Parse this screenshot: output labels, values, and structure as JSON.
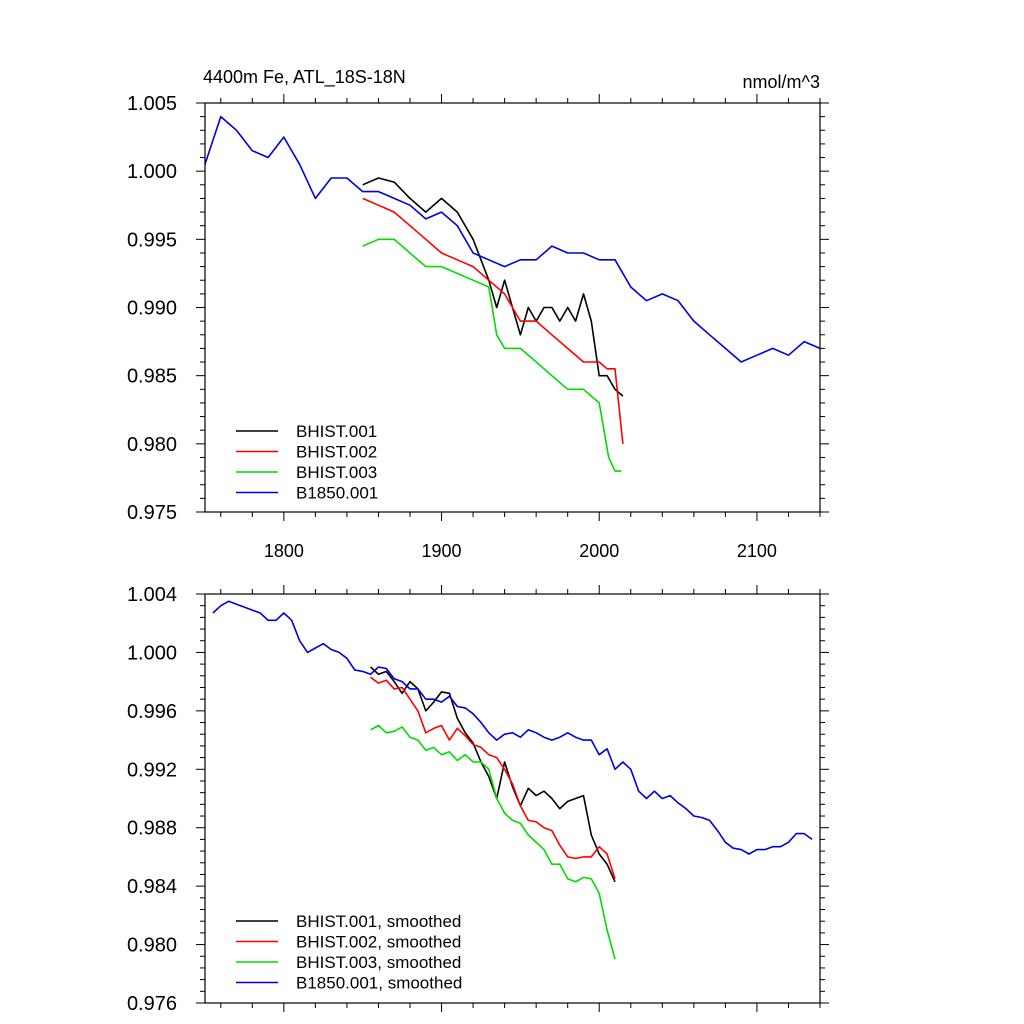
{
  "figure": {
    "title": "4400m Fe, ATL_18S-18N",
    "units": "nmol/m^3"
  },
  "chart_data": [
    {
      "type": "line",
      "xlim": [
        1750,
        2140
      ],
      "ylim": [
        0.975,
        1.005
      ],
      "x_ticks": [
        1800,
        1900,
        2000,
        2100
      ],
      "y_ticks": [
        0.975,
        0.98,
        0.985,
        0.99,
        0.995,
        1.0,
        1.005
      ],
      "y_tick_labels": [
        "0.975",
        "0.980",
        "0.985",
        "0.990",
        "0.995",
        "1.000",
        "1.005"
      ],
      "grid": false,
      "legend_position": "bottom-left",
      "series": [
        {
          "name": "BHIST.001",
          "color": "#000000",
          "x": [
            1850,
            1860,
            1870,
            1880,
            1890,
            1900,
            1910,
            1920,
            1930,
            1935,
            1940,
            1945,
            1950,
            1955,
            1960,
            1965,
            1970,
            1975,
            1980,
            1985,
            1990,
            1995,
            2000,
            2005,
            2010,
            2015
          ],
          "y": [
            0.999,
            0.9995,
            0.9992,
            0.998,
            0.997,
            0.998,
            0.997,
            0.995,
            0.992,
            0.99,
            0.992,
            0.99,
            0.988,
            0.99,
            0.989,
            0.99,
            0.99,
            0.989,
            0.99,
            0.989,
            0.991,
            0.989,
            0.985,
            0.985,
            0.984,
            0.9835
          ]
        },
        {
          "name": "BHIST.002",
          "color": "#ff0000",
          "x": [
            1850,
            1860,
            1870,
            1880,
            1890,
            1900,
            1910,
            1920,
            1930,
            1940,
            1950,
            1960,
            1970,
            1980,
            1990,
            2000,
            2005,
            2010,
            2015
          ],
          "y": [
            0.998,
            0.9975,
            0.997,
            0.996,
            0.995,
            0.994,
            0.9935,
            0.993,
            0.992,
            0.991,
            0.989,
            0.989,
            0.988,
            0.987,
            0.986,
            0.986,
            0.9855,
            0.9855,
            0.98
          ]
        },
        {
          "name": "BHIST.003",
          "color": "#00dd00",
          "x": [
            1850,
            1860,
            1870,
            1880,
            1890,
            1900,
            1910,
            1920,
            1930,
            1935,
            1940,
            1950,
            1960,
            1970,
            1980,
            1990,
            1995,
            2000,
            2003,
            2006,
            2010,
            2014
          ],
          "y": [
            0.9945,
            0.995,
            0.995,
            0.994,
            0.993,
            0.993,
            0.9925,
            0.992,
            0.9915,
            0.988,
            0.987,
            0.987,
            0.986,
            0.985,
            0.984,
            0.984,
            0.9835,
            0.983,
            0.981,
            0.979,
            0.978,
            0.978
          ]
        },
        {
          "name": "B1850.001",
          "color": "#0000dd",
          "x": [
            1750,
            1760,
            1770,
            1780,
            1790,
            1800,
            1810,
            1820,
            1830,
            1840,
            1850,
            1860,
            1870,
            1880,
            1890,
            1900,
            1910,
            1920,
            1930,
            1940,
            1950,
            1960,
            1970,
            1980,
            1990,
            2000,
            2010,
            2020,
            2030,
            2040,
            2050,
            2060,
            2070,
            2080,
            2090,
            2100,
            2110,
            2120,
            2130,
            2140
          ],
          "y": [
            1.0005,
            1.004,
            1.003,
            1.0015,
            1.001,
            1.0025,
            1.0005,
            0.998,
            0.9995,
            0.9995,
            0.9985,
            0.9985,
            0.998,
            0.9975,
            0.9965,
            0.997,
            0.996,
            0.994,
            0.9935,
            0.993,
            0.9935,
            0.9935,
            0.9945,
            0.994,
            0.994,
            0.9935,
            0.9935,
            0.9915,
            0.9905,
            0.991,
            0.9905,
            0.989,
            0.988,
            0.987,
            0.986,
            0.9865,
            0.987,
            0.9865,
            0.9875,
            0.987
          ]
        }
      ]
    },
    {
      "type": "line",
      "xlim": [
        1750,
        2140
      ],
      "ylim": [
        0.976,
        1.004
      ],
      "x_ticks": [
        1800,
        1900,
        2000,
        2100
      ],
      "y_ticks": [
        0.976,
        0.98,
        0.984,
        0.988,
        0.992,
        0.996,
        1.0,
        1.004
      ],
      "y_tick_labels": [
        "0.976",
        "0.980",
        "0.984",
        "0.988",
        "0.992",
        "0.996",
        "1.000",
        "1.004"
      ],
      "grid": false,
      "legend_position": "bottom-left",
      "series": [
        {
          "name": "BHIST.001, smoothed",
          "color": "#000000",
          "x": [
            1855,
            1860,
            1865,
            1870,
            1875,
            1880,
            1885,
            1890,
            1895,
            1900,
            1905,
            1910,
            1915,
            1920,
            1925,
            1930,
            1935,
            1940,
            1945,
            1950,
            1955,
            1960,
            1965,
            1970,
            1975,
            1980,
            1985,
            1990,
            1995,
            2000,
            2005,
            2010
          ],
          "y": [
            0.999,
            0.9985,
            0.9987,
            0.998,
            0.9972,
            0.998,
            0.9975,
            0.996,
            0.9966,
            0.9973,
            0.9972,
            0.9955,
            0.9945,
            0.9938,
            0.9925,
            0.9915,
            0.99,
            0.9925,
            0.9908,
            0.9895,
            0.9907,
            0.9902,
            0.9905,
            0.99,
            0.9893,
            0.9898,
            0.99,
            0.9902,
            0.9875,
            0.9862,
            0.9855,
            0.9843
          ]
        },
        {
          "name": "BHIST.002, smoothed",
          "color": "#ff0000",
          "x": [
            1855,
            1860,
            1865,
            1870,
            1875,
            1880,
            1885,
            1890,
            1895,
            1900,
            1905,
            1910,
            1915,
            1920,
            1925,
            1930,
            1935,
            1940,
            1945,
            1950,
            1955,
            1960,
            1965,
            1970,
            1975,
            1980,
            1985,
            1990,
            1995,
            2000,
            2005,
            2010
          ],
          "y": [
            0.9983,
            0.9979,
            0.9981,
            0.9975,
            0.9976,
            0.9968,
            0.996,
            0.9945,
            0.9948,
            0.995,
            0.994,
            0.9948,
            0.9943,
            0.9937,
            0.9935,
            0.993,
            0.9928,
            0.992,
            0.991,
            0.9895,
            0.9885,
            0.9884,
            0.988,
            0.9878,
            0.9868,
            0.986,
            0.9859,
            0.986,
            0.986,
            0.9867,
            0.9862,
            0.9845
          ]
        },
        {
          "name": "BHIST.003, smoothed",
          "color": "#00dd00",
          "x": [
            1855,
            1860,
            1865,
            1870,
            1875,
            1880,
            1885,
            1890,
            1895,
            1900,
            1905,
            1910,
            1915,
            1920,
            1925,
            1930,
            1935,
            1940,
            1945,
            1950,
            1955,
            1960,
            1965,
            1970,
            1975,
            1980,
            1985,
            1990,
            1995,
            2000,
            2005,
            2010
          ],
          "y": [
            0.9947,
            0.995,
            0.9945,
            0.9946,
            0.9949,
            0.9942,
            0.994,
            0.9933,
            0.9935,
            0.993,
            0.9932,
            0.9926,
            0.993,
            0.9925,
            0.9925,
            0.992,
            0.99,
            0.989,
            0.9885,
            0.9883,
            0.9875,
            0.987,
            0.9865,
            0.9855,
            0.9855,
            0.9845,
            0.9843,
            0.9846,
            0.9845,
            0.9835,
            0.981,
            0.979
          ]
        },
        {
          "name": "B1850.001, smoothed",
          "color": "#0000dd",
          "x": [
            1755,
            1760,
            1765,
            1770,
            1775,
            1780,
            1785,
            1790,
            1795,
            1800,
            1805,
            1810,
            1815,
            1820,
            1825,
            1830,
            1835,
            1840,
            1845,
            1850,
            1855,
            1860,
            1865,
            1870,
            1875,
            1880,
            1885,
            1890,
            1895,
            1900,
            1905,
            1910,
            1915,
            1920,
            1925,
            1930,
            1935,
            1940,
            1945,
            1950,
            1955,
            1960,
            1965,
            1970,
            1975,
            1980,
            1985,
            1990,
            1995,
            2000,
            2005,
            2010,
            2015,
            2020,
            2025,
            2030,
            2035,
            2040,
            2045,
            2050,
            2055,
            2060,
            2065,
            2070,
            2075,
            2080,
            2085,
            2090,
            2095,
            2100,
            2105,
            2110,
            2115,
            2120,
            2125,
            2130,
            2135
          ],
          "y": [
            1.0027,
            1.0032,
            1.0035,
            1.0033,
            1.0031,
            1.0029,
            1.0027,
            1.0022,
            1.0022,
            1.0027,
            1.0022,
            1.0008,
            1.0,
            1.0003,
            1.0006,
            1.0002,
            1.0,
            0.9996,
            0.9988,
            0.9987,
            0.9985,
            0.999,
            0.9989,
            0.9982,
            0.998,
            0.9975,
            0.9975,
            0.9968,
            0.9968,
            0.9966,
            0.997,
            0.9963,
            0.9962,
            0.9958,
            0.9952,
            0.9945,
            0.994,
            0.9944,
            0.9945,
            0.9942,
            0.9947,
            0.9945,
            0.9942,
            0.994,
            0.9942,
            0.9945,
            0.9942,
            0.994,
            0.994,
            0.993,
            0.9934,
            0.992,
            0.9925,
            0.992,
            0.9905,
            0.99,
            0.9905,
            0.99,
            0.9902,
            0.9897,
            0.9893,
            0.9888,
            0.9887,
            0.9885,
            0.9878,
            0.987,
            0.9866,
            0.9865,
            0.9862,
            0.9865,
            0.9865,
            0.9867,
            0.9867,
            0.987,
            0.9876,
            0.9876,
            0.9872
          ]
        }
      ]
    }
  ]
}
